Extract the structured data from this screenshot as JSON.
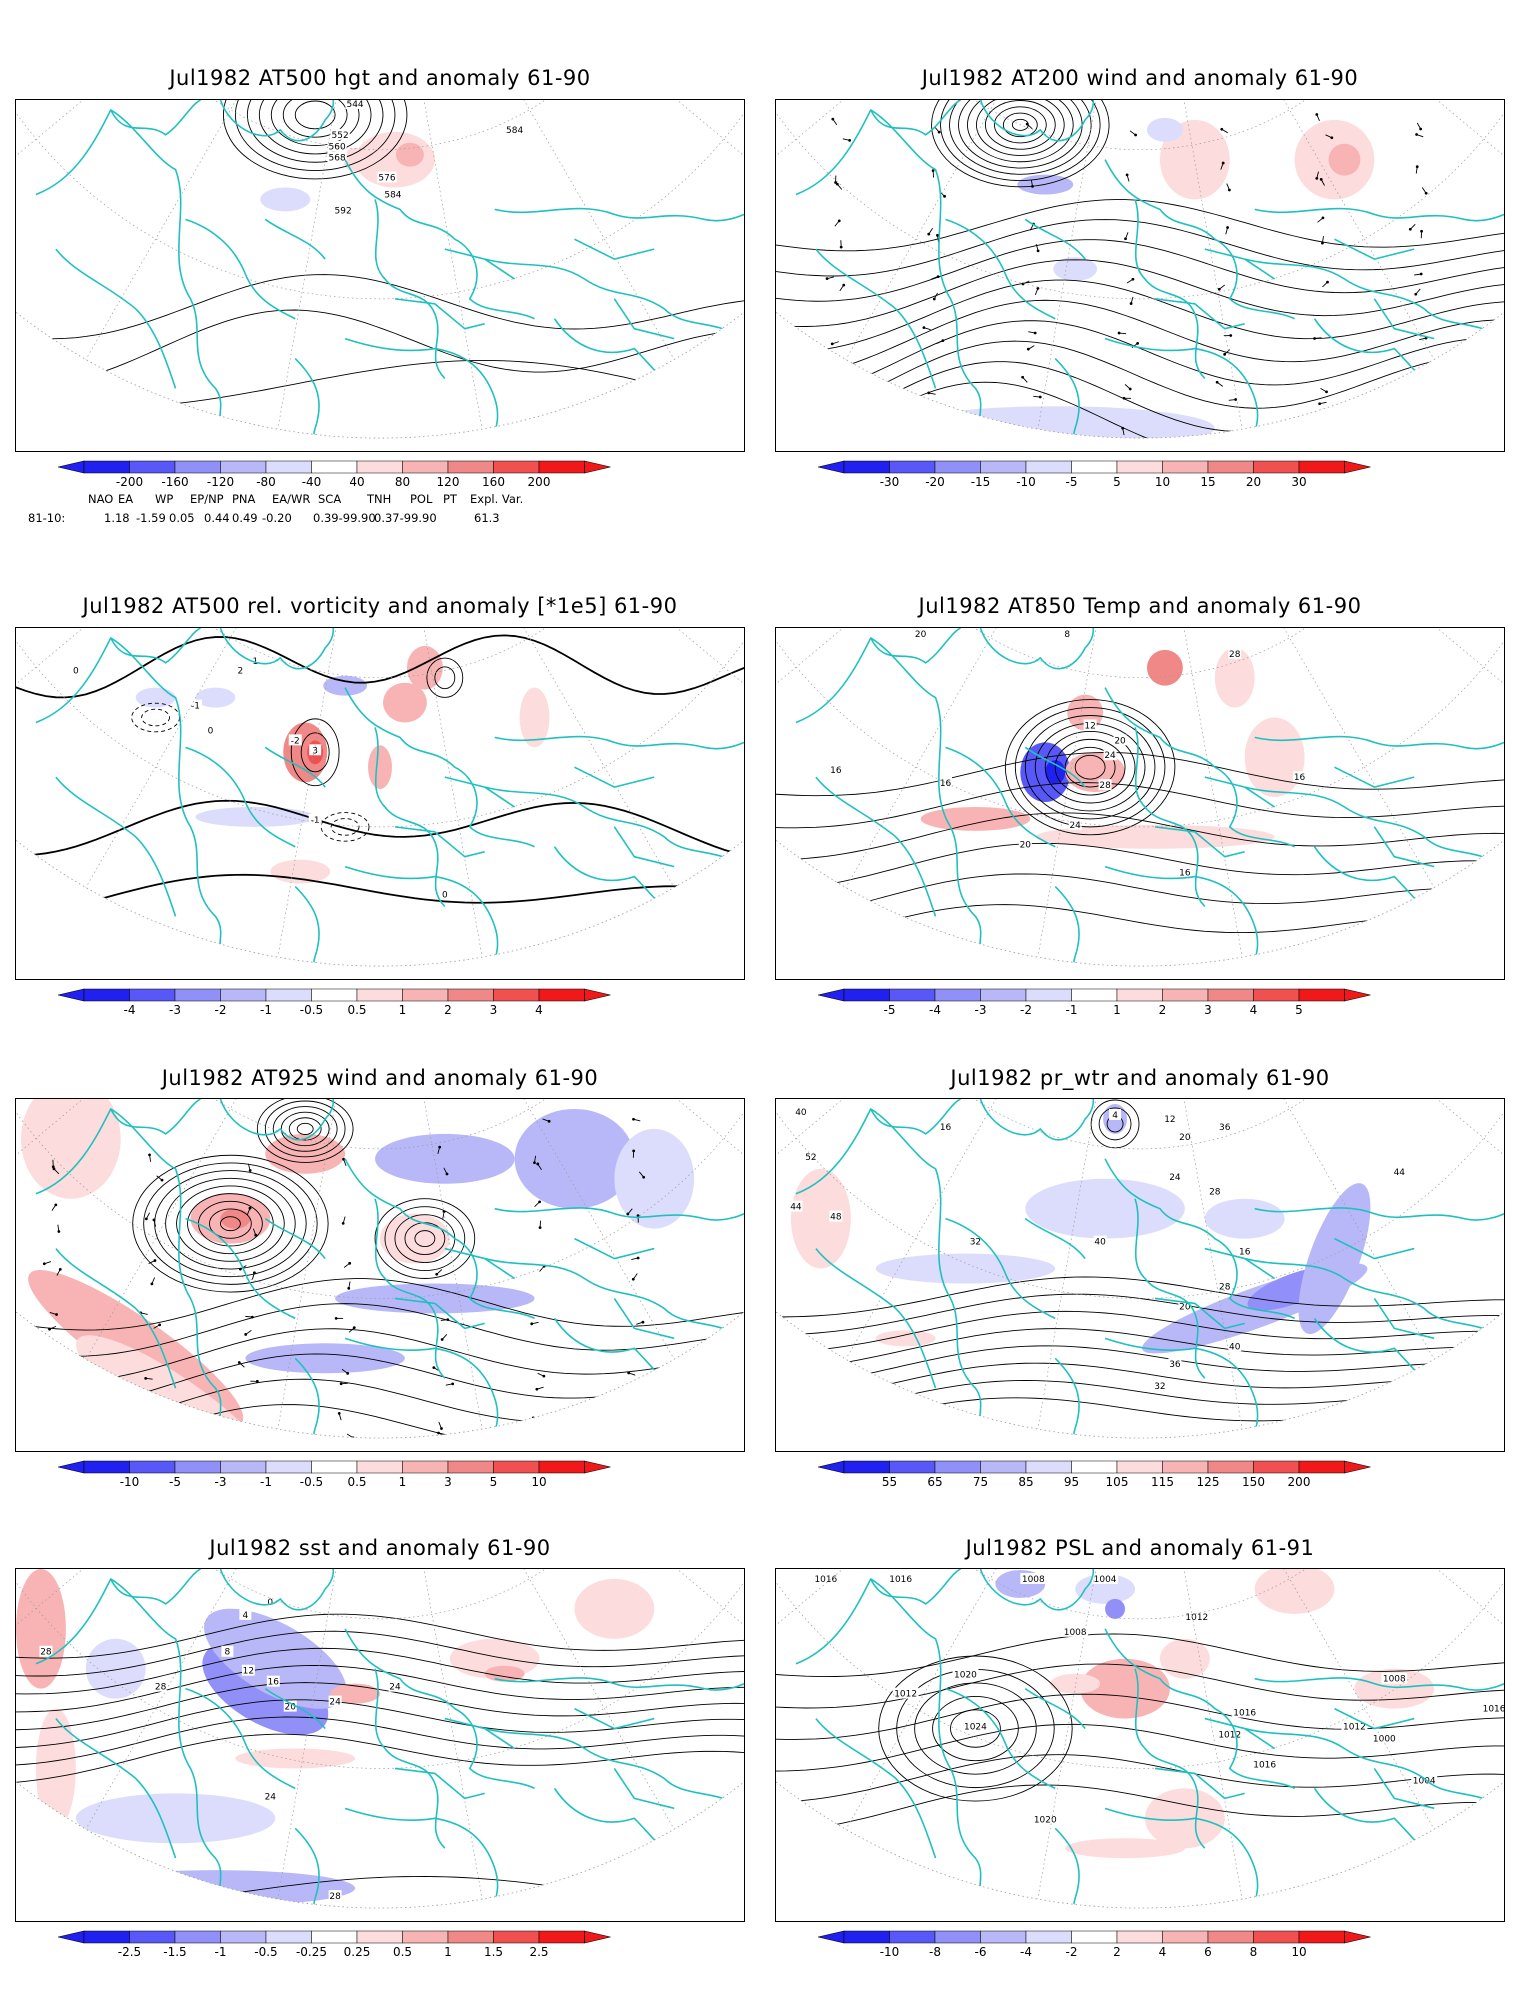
{
  "panels": [
    {
      "title": "Jul1982 AT500 hgt and anomaly 61-90",
      "colorbar": [
        "-200",
        "-160",
        "-120",
        "-80",
        "-40",
        "40",
        "80",
        "120",
        "160",
        "200"
      ],
      "contour_labels": [
        "544",
        "552",
        "560",
        "568",
        "576",
        "584",
        "592",
        "584"
      ]
    },
    {
      "title": "Jul1982 AT200 wind and anomaly 61-90",
      "colorbar": [
        "-30",
        "-20",
        "-15",
        "-10",
        "-5",
        "5",
        "10",
        "15",
        "20",
        "30"
      ],
      "contour_labels": []
    },
    {
      "title": "Jul1982 AT500 rel. vorticity and anomaly [*1e5] 61-90",
      "colorbar": [
        "-4",
        "-3",
        "-2",
        "-1",
        "-0.5",
        "0.5",
        "1",
        "2",
        "3",
        "4"
      ],
      "contour_labels": [
        "0",
        "-1",
        "1",
        "2",
        "-2",
        "3",
        "0",
        "-1",
        "0"
      ]
    },
    {
      "title": "Jul1982 AT850 Temp and anomaly 61-90",
      "colorbar": [
        "-5",
        "-4",
        "-3",
        "-2",
        "-1",
        "1",
        "2",
        "3",
        "4",
        "5"
      ],
      "contour_labels": [
        "20",
        "8",
        "28",
        "16",
        "12",
        "20",
        "24",
        "28",
        "16",
        "24",
        "20",
        "16",
        "16"
      ]
    },
    {
      "title": "Jul1982 AT925 wind and anomaly 61-90",
      "colorbar": [
        "-10",
        "-5",
        "-3",
        "-1",
        "-0.5",
        "0.5",
        "1",
        "3",
        "5",
        "10"
      ],
      "contour_labels": []
    },
    {
      "title": "Jul1982 pr_wtr and anomaly 61-90",
      "colorbar": [
        "55",
        "65",
        "75",
        "85",
        "95",
        "105",
        "115",
        "125",
        "150",
        "200"
      ],
      "contour_labels": [
        "40",
        "52",
        "44",
        "48",
        "16",
        "4",
        "12",
        "20",
        "24",
        "28",
        "32",
        "36",
        "44",
        "40",
        "16",
        "28",
        "20",
        "40",
        "36",
        "32"
      ]
    },
    {
      "title": "Jul1982 sst and anomaly 61-90",
      "colorbar": [
        "-2.5",
        "-1.5",
        "-1",
        "-0.5",
        "-0.25",
        "0.25",
        "0.5",
        "1",
        "1.5",
        "2.5"
      ],
      "contour_labels": [
        "28",
        "28",
        "8",
        "12",
        "16",
        "20",
        "24",
        "4",
        "0",
        "24",
        "24",
        "28"
      ]
    },
    {
      "title": "Jul1982 PSL and anomaly 61-91",
      "colorbar": [
        "-10",
        "-8",
        "-6",
        "-4",
        "-2",
        "2",
        "4",
        "6",
        "8",
        "10"
      ],
      "contour_labels": [
        "1016",
        "1016",
        "1008",
        "1004",
        "1012",
        "1008",
        "1020",
        "1024",
        "1020",
        "1012",
        "1016",
        "1012",
        "1008",
        "1000",
        "1004",
        "1016",
        "1012",
        "1016"
      ]
    }
  ],
  "indices": {
    "names": [
      "NAO",
      "EA",
      "WP",
      "EP/NP",
      "PNA",
      "EA/WR",
      "SCA",
      "TNH",
      "POL",
      "PT",
      "Expl. Var."
    ],
    "row_label": "81-10:",
    "values": [
      "1.18",
      "-1.59",
      "0.05",
      "0.44",
      "0.49",
      "-0.20",
      "0.39-99.90",
      "0.37-99.90",
      "61.3"
    ]
  },
  "colors": {
    "coast": "#20c0c0",
    "contour": "#000000",
    "neg_scale": [
      "#2020f0",
      "#5858f8",
      "#9090f8",
      "#b8b8f8",
      "#dcdcfc"
    ],
    "pos_scale": [
      "#fcdcdc",
      "#f8b4b4",
      "#f08888",
      "#f05050",
      "#f01818"
    ]
  }
}
